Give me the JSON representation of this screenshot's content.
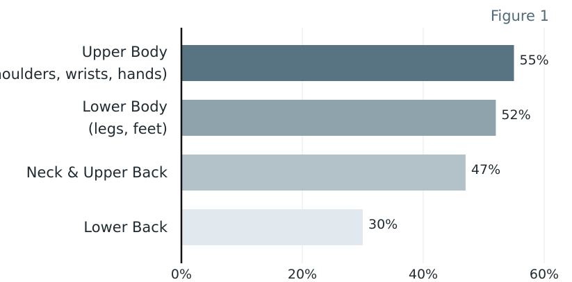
{
  "figure_label": "Figure 1",
  "chart_data": {
    "type": "bar",
    "orientation": "horizontal",
    "title": "",
    "xlabel": "",
    "ylabel": "",
    "categories": [
      [
        "Upper Body",
        "(shoulders, wrists, hands)"
      ],
      [
        "Lower Body",
        "(legs, feet)"
      ],
      [
        "Neck & Upper Back"
      ],
      [
        "Lower Back"
      ]
    ],
    "values": [
      55,
      52,
      47,
      30
    ],
    "value_labels": [
      "55%",
      "52%",
      "47%",
      "30%"
    ],
    "bar_colors": [
      "#587482",
      "#8fa3ad",
      "#b3c2c9",
      "#e1e8ee"
    ],
    "xlim": [
      0,
      60
    ],
    "xticks": [
      0,
      20,
      40,
      60
    ],
    "xtick_labels": [
      "0%",
      "20%",
      "40%",
      "60%"
    ],
    "grid": true,
    "legend": "none"
  }
}
